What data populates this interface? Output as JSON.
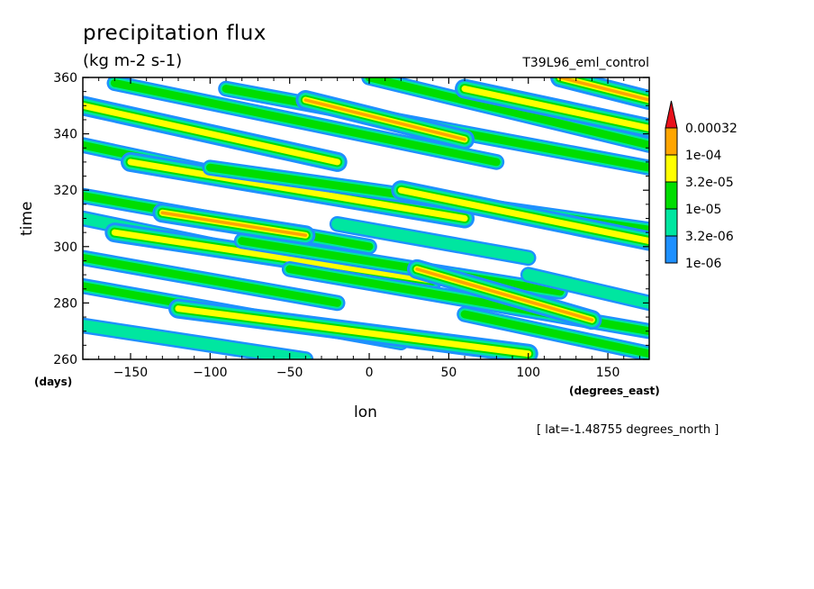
{
  "chart_data": {
    "type": "heatmap",
    "title": "precipitation flux",
    "units": "(kg m-2 s-1)",
    "run_id": "T39L96_eml_control",
    "xlabel": "lon",
    "ylabel": "time",
    "x_units": "(degrees_east)",
    "y_units": "(days)",
    "xlim": [
      -180,
      176
    ],
    "ylim": [
      260,
      360
    ],
    "x_ticks": [
      -150,
      -100,
      -50,
      0,
      50,
      100,
      150
    ],
    "x_tick_labels": [
      "−150",
      "−100",
      "−50",
      "0",
      "50",
      "100",
      "150"
    ],
    "y_ticks": [
      260,
      280,
      300,
      320,
      340,
      360
    ],
    "footnote": "[ lat=-1.48755 degrees_north ]",
    "colorbar": {
      "levels": [
        "1e-06",
        "3.2e-06",
        "1e-05",
        "3.2e-05",
        "1e-04",
        "0.00032"
      ],
      "colors": [
        "#1e90ff",
        "#00e6a0",
        "#00dd00",
        "#ffff00",
        "#ffa500",
        "#e8111b"
      ]
    },
    "bands": [
      {
        "x0": -180,
        "t0": 350,
        "x1": -20,
        "t1": 330,
        "level": 3
      },
      {
        "x0": -160,
        "t0": 358,
        "x1": 80,
        "t1": 330,
        "level": 2
      },
      {
        "x0": -90,
        "t0": 356,
        "x1": 176,
        "t1": 328,
        "level": 2
      },
      {
        "x0": -40,
        "t0": 352,
        "x1": 60,
        "t1": 338,
        "level": 4
      },
      {
        "x0": 0,
        "t0": 360,
        "x1": 176,
        "t1": 336,
        "level": 2
      },
      {
        "x0": 60,
        "t0": 356,
        "x1": 176,
        "t1": 342,
        "level": 3
      },
      {
        "x0": 120,
        "t0": 360,
        "x1": 176,
        "t1": 352,
        "level": 4
      },
      {
        "x0": -180,
        "t0": 336,
        "x1": -30,
        "t1": 318,
        "level": 2
      },
      {
        "x0": -150,
        "t0": 330,
        "x1": 60,
        "t1": 310,
        "level": 3
      },
      {
        "x0": -100,
        "t0": 328,
        "x1": 176,
        "t1": 306,
        "level": 2
      },
      {
        "x0": 20,
        "t0": 320,
        "x1": 176,
        "t1": 302,
        "level": 3
      },
      {
        "x0": -180,
        "t0": 318,
        "x1": 0,
        "t1": 300,
        "level": 2
      },
      {
        "x0": -180,
        "t0": 310,
        "x1": -60,
        "t1": 296,
        "level": 1
      },
      {
        "x0": -160,
        "t0": 305,
        "x1": 40,
        "t1": 288,
        "level": 3
      },
      {
        "x0": -80,
        "t0": 302,
        "x1": 120,
        "t1": 284,
        "level": 2
      },
      {
        "x0": -180,
        "t0": 296,
        "x1": -20,
        "t1": 280,
        "level": 2
      },
      {
        "x0": -50,
        "t0": 292,
        "x1": 176,
        "t1": 270,
        "level": 2
      },
      {
        "x0": 30,
        "t0": 292,
        "x1": 140,
        "t1": 274,
        "level": 4
      },
      {
        "x0": -180,
        "t0": 286,
        "x1": 20,
        "t1": 266,
        "level": 2
      },
      {
        "x0": -120,
        "t0": 278,
        "x1": 100,
        "t1": 262,
        "level": 3
      },
      {
        "x0": -180,
        "t0": 272,
        "x1": -40,
        "t1": 260,
        "level": 1
      },
      {
        "x0": 60,
        "t0": 276,
        "x1": 176,
        "t1": 262,
        "level": 2
      },
      {
        "x0": 100,
        "t0": 290,
        "x1": 176,
        "t1": 280,
        "level": 1
      },
      {
        "x0": -130,
        "t0": 312,
        "x1": -40,
        "t1": 304,
        "level": 4
      },
      {
        "x0": -20,
        "t0": 308,
        "x1": 100,
        "t1": 296,
        "level": 1
      }
    ]
  }
}
